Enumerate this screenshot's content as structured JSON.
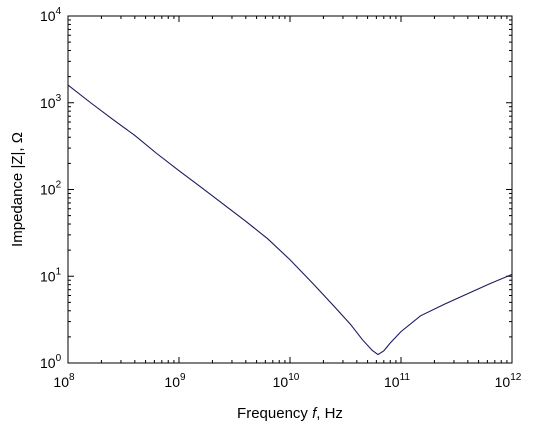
{
  "chart_data": {
    "type": "line",
    "title": "",
    "xlabel": "Frequency f, Hz",
    "xlabel_parts": {
      "pre": "Frequency ",
      "italic": "f",
      "post": ", Hz"
    },
    "ylabel": "Impedance |Z|, Ω",
    "xscale": "log",
    "yscale": "log",
    "xlim": [
      100000000.0,
      1000000000000.0
    ],
    "ylim": [
      1,
      10000
    ],
    "grid": false,
    "line_color": "#1a1a5e",
    "x_ticks": [
      {
        "value": 100000000.0,
        "base": "10",
        "exp": "8"
      },
      {
        "value": 1000000000.0,
        "base": "10",
        "exp": "9"
      },
      {
        "value": 10000000000.0,
        "base": "10",
        "exp": "10"
      },
      {
        "value": 100000000000.0,
        "base": "10",
        "exp": "11"
      },
      {
        "value": 1000000000000.0,
        "base": "10",
        "exp": "12"
      }
    ],
    "y_ticks": [
      {
        "value": 1,
        "base": "10",
        "exp": "0"
      },
      {
        "value": 10,
        "base": "10",
        "exp": "1"
      },
      {
        "value": 100,
        "base": "10",
        "exp": "2"
      },
      {
        "value": 1000,
        "base": "10",
        "exp": "3"
      },
      {
        "value": 10000,
        "base": "10",
        "exp": "4"
      }
    ],
    "series": [
      {
        "x": [
          100000000.0,
          160000000.0,
          250000000.0,
          400000000.0,
          630000000.0,
          1000000000.0,
          1600000000.0,
          2500000000.0,
          4000000000.0,
          6300000000.0,
          10000000000.0,
          16000000000.0,
          25000000000.0,
          35000000000.0,
          45000000000.0,
          55000000000.0,
          62000000000.0,
          70000000000.0,
          80000000000.0,
          100000000000.0,
          150000000000.0,
          250000000000.0,
          400000000000.0,
          630000000000.0,
          1000000000000.0
        ],
        "y": [
          1600,
          1000,
          650,
          420,
          260,
          165,
          105,
          68,
          43,
          27,
          15.5,
          8.3,
          4.5,
          2.8,
          1.85,
          1.4,
          1.25,
          1.38,
          1.7,
          2.3,
          3.5,
          4.8,
          6.3,
          8.2,
          10.5
        ]
      }
    ]
  }
}
